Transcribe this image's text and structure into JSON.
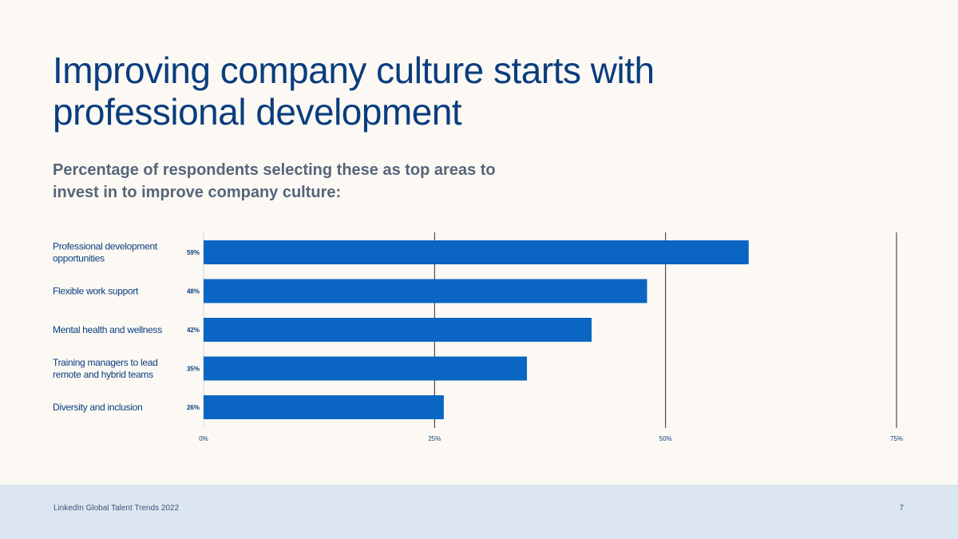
{
  "header": {
    "title": "Improving company culture starts with professional development",
    "subtitle": "Percentage of respondents selecting these as top areas to invest in to improve company culture:"
  },
  "chart_data": {
    "type": "bar",
    "orientation": "horizontal",
    "categories": [
      "Professional development opportunities",
      "Flexible work support",
      "Mental health and wellness",
      "Training managers to lead remote and hybrid teams",
      "Diversity and inclusion"
    ],
    "category_lines": [
      [
        "Professional development",
        "opportunities"
      ],
      [
        "Flexible work support"
      ],
      [
        "Mental health and wellness"
      ],
      [
        "Training managers to lead",
        "remote and hybrid teams"
      ],
      [
        "Diversity and inclusion"
      ]
    ],
    "values": [
      59,
      48,
      42,
      35,
      26
    ],
    "value_labels": [
      "59%",
      "48%",
      "42%",
      "35%",
      "26%"
    ],
    "xlim": [
      0,
      75
    ],
    "xticks": [
      0,
      25,
      50,
      75
    ],
    "xtick_labels": [
      "0%",
      "25%",
      "50%",
      "75%"
    ],
    "grid": true,
    "bar_color": "#0a66c2",
    "title": "",
    "xlabel": "",
    "ylabel": ""
  },
  "footer": {
    "source": "LinkedIn Global Talent Trends 2022",
    "page_number": "7"
  }
}
